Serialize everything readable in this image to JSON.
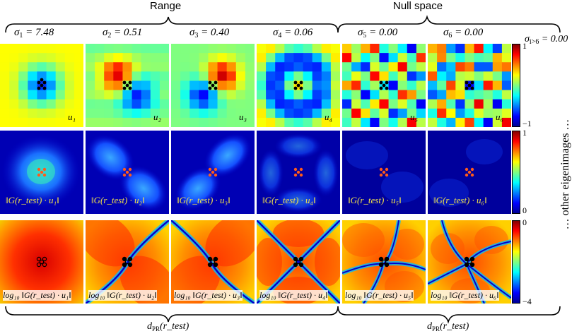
{
  "header": {
    "range_label": "Range",
    "null_label": "Null space"
  },
  "sigmas": [
    {
      "name": "σ",
      "sub": "1",
      "value": " = 7.48"
    },
    {
      "name": "σ",
      "sub": "2",
      "value": " = 0.51"
    },
    {
      "name": "σ",
      "sub": "3",
      "value": " = 0.40"
    },
    {
      "name": "σ",
      "sub": "4",
      "value": " = 0.06"
    },
    {
      "name": "σ",
      "sub": "5",
      "value": " = 0.00"
    },
    {
      "name": "σ",
      "sub": "6",
      "value": " = 0.00"
    }
  ],
  "sigma_rest": {
    "name": "σ",
    "sub": "i>6",
    "value": " = 0.00"
  },
  "row1_labels": [
    "u₁",
    "u₂",
    "u₃",
    "u₄",
    "u₅",
    "u₆"
  ],
  "row2_labels": [
    "‖G(r_test) · u₁‖",
    "‖G(r_test) · u₂‖",
    "‖G(r_test) · u₃‖",
    "‖G(r_test) · u₄‖",
    "‖G(r_test) · u₅‖",
    "‖G(r_test) · u₆‖"
  ],
  "row3_labels": [
    "log₁₀ ‖G(r_test) · u₁‖",
    "log₁₀ ‖G(r_test) · u₂‖",
    "log₁₀ ‖G(r_test) · u₃‖",
    "log₁₀ ‖G(r_test) · u₄‖",
    "log₁₀ ‖G(r_test) · u₅‖",
    "log₁₀ ‖G(r_test) · u₆‖"
  ],
  "colorbars": [
    {
      "top": "1",
      "bottom": "−1"
    },
    {
      "top": "1",
      "bottom": "0"
    },
    {
      "top": "0",
      "bottom": "−4"
    }
  ],
  "side_label": "… other eigenimages …",
  "footer": {
    "dpr": "d",
    "dpr_sub": "PR",
    "dpr_arg": "(r_test)"
  },
  "colors": {
    "blue": "#0000a0",
    "red": "#b00000",
    "yellow": "#f2e24a"
  }
}
